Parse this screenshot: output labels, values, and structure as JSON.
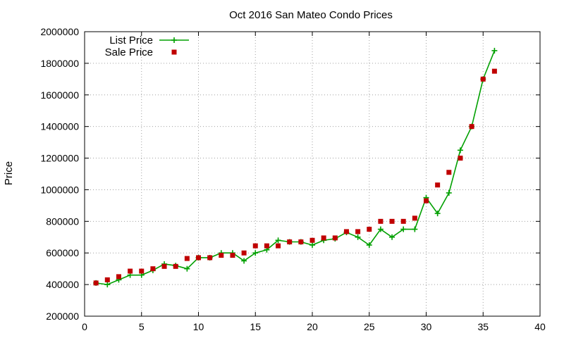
{
  "chart_data": {
    "type": "line",
    "title": "Oct 2016 San Mateo Condo Prices",
    "xlabel": "",
    "ylabel": "Price",
    "xlim": [
      0,
      40
    ],
    "ylim": [
      200000,
      2000000
    ],
    "xticks": [
      0,
      5,
      10,
      15,
      20,
      25,
      30,
      35,
      40
    ],
    "yticks": [
      200000,
      400000,
      600000,
      800000,
      1000000,
      1200000,
      1400000,
      1600000,
      1800000,
      2000000
    ],
    "grid": true,
    "legend_position": "top-left",
    "series": [
      {
        "name": "List Price",
        "style": "line+cross",
        "color": "#00a000",
        "x": [
          1,
          2,
          3,
          4,
          5,
          6,
          7,
          8,
          9,
          10,
          11,
          12,
          13,
          14,
          15,
          16,
          17,
          18,
          19,
          20,
          21,
          22,
          23,
          24,
          25,
          26,
          27,
          28,
          29,
          30,
          31,
          32,
          33,
          34,
          35,
          36
        ],
        "y": [
          410000,
          400000,
          430000,
          460000,
          460000,
          490000,
          530000,
          520000,
          500000,
          570000,
          570000,
          600000,
          600000,
          550000,
          600000,
          620000,
          680000,
          670000,
          670000,
          650000,
          680000,
          690000,
          730000,
          700000,
          650000,
          750000,
          700000,
          750000,
          750000,
          950000,
          850000,
          980000,
          1250000,
          1400000,
          1700000,
          1880000
        ]
      },
      {
        "name": "Sale Price",
        "style": "square",
        "color": "#c00000",
        "x": [
          1,
          2,
          3,
          4,
          5,
          6,
          7,
          8,
          9,
          10,
          11,
          12,
          13,
          14,
          15,
          16,
          17,
          18,
          19,
          20,
          21,
          22,
          23,
          24,
          25,
          26,
          27,
          28,
          29,
          30,
          31,
          32,
          33,
          34,
          35,
          36
        ],
        "y": [
          410000,
          430000,
          450000,
          485000,
          485000,
          500000,
          515000,
          515000,
          565000,
          570000,
          570000,
          585000,
          585000,
          600000,
          645000,
          645000,
          645000,
          670000,
          670000,
          680000,
          695000,
          695000,
          735000,
          735000,
          750000,
          800000,
          800000,
          800000,
          820000,
          930000,
          1030000,
          1110000,
          1200000,
          1400000,
          1700000,
          1750000
        ]
      }
    ]
  }
}
